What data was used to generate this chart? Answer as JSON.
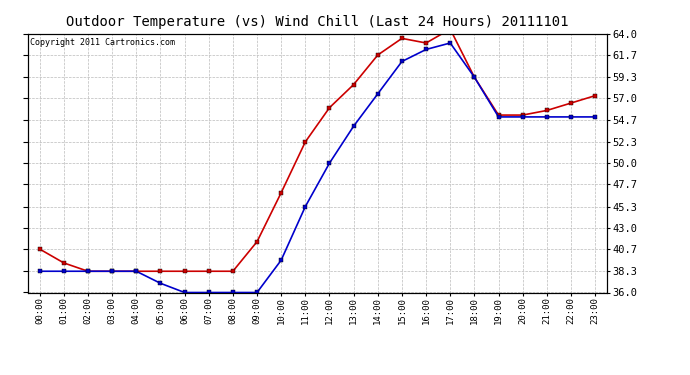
{
  "title": "Outdoor Temperature (vs) Wind Chill (Last 24 Hours) 20111101",
  "copyright": "Copyright 2011 Cartronics.com",
  "hours": [
    "00:00",
    "01:00",
    "02:00",
    "03:00",
    "04:00",
    "05:00",
    "06:00",
    "07:00",
    "08:00",
    "09:00",
    "10:00",
    "11:00",
    "12:00",
    "13:00",
    "14:00",
    "15:00",
    "16:00",
    "17:00",
    "18:00",
    "19:00",
    "20:00",
    "21:00",
    "22:00",
    "23:00"
  ],
  "temp": [
    40.7,
    39.2,
    38.3,
    38.3,
    38.3,
    38.3,
    38.3,
    38.3,
    38.3,
    41.5,
    46.8,
    52.3,
    56.0,
    58.5,
    61.7,
    63.5,
    63.0,
    64.5,
    59.3,
    55.2,
    55.2,
    55.7,
    56.5,
    57.3
  ],
  "windchill": [
    38.3,
    38.3,
    38.3,
    38.3,
    38.3,
    37.0,
    36.0,
    36.0,
    36.0,
    36.0,
    39.5,
    45.3,
    50.0,
    54.0,
    57.5,
    61.0,
    62.3,
    63.0,
    59.3,
    55.0,
    55.0,
    55.0,
    55.0,
    55.0
  ],
  "temp_color": "#cc0000",
  "windchill_color": "#0000cc",
  "bg_color": "#ffffff",
  "grid_color": "#bbbbbb",
  "ylim": [
    36.0,
    64.0
  ],
  "yticks": [
    36.0,
    38.3,
    40.7,
    43.0,
    45.3,
    47.7,
    50.0,
    52.3,
    54.7,
    57.0,
    59.3,
    61.7,
    64.0
  ],
  "title_fontsize": 10,
  "copyright_fontsize": 6,
  "marker": "s",
  "marker_size": 3,
  "line_width": 1.2
}
